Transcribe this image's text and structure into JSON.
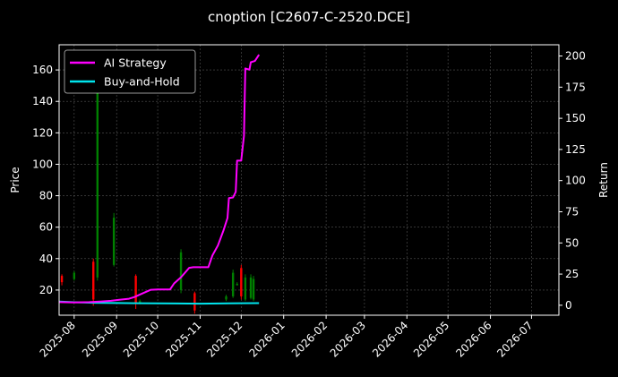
{
  "chart_data": {
    "type": "line",
    "title": "cnoption [C2607-C-2520.DCE]",
    "ylabel_left": "Price",
    "ylabel_right": "Return",
    "xlabel": "",
    "grid": true,
    "legend_placement": "top-left",
    "x_ticks": [
      "2025-08",
      "2025-09",
      "2025-10",
      "2025-11",
      "2025-12",
      "2026-01",
      "2026-02",
      "2026-03",
      "2026-04",
      "2026-05",
      "2026-06",
      "2026-07"
    ],
    "x_range": [
      "2025-07-21",
      "2026-07-21"
    ],
    "y_left_ticks": [
      20,
      40,
      60,
      80,
      100,
      120,
      140,
      160
    ],
    "y_left_range": [
      4,
      176
    ],
    "y_right_ticks": [
      0,
      25,
      50,
      75,
      100,
      125,
      150,
      175,
      200
    ],
    "y_right_range": [
      -8,
      209
    ],
    "colors": {
      "up": "#008000",
      "down": "#ff0000",
      "strategy": "#ff00ff",
      "buyhold": "#00e5ee",
      "background": "#000000",
      "grid": "#555555"
    },
    "series": [
      {
        "name": "AI Strategy",
        "axis": "right",
        "points": [
          [
            "2025-07-21",
            2.5
          ],
          [
            "2025-08-01",
            2.2
          ],
          [
            "2025-08-12",
            2.5
          ],
          [
            "2025-08-15",
            2.7
          ],
          [
            "2025-08-20",
            3.0
          ],
          [
            "2025-08-28",
            3.6
          ],
          [
            "2025-09-03",
            4.4
          ],
          [
            "2025-09-10",
            5.2
          ],
          [
            "2025-09-14",
            6.6
          ],
          [
            "2025-09-20",
            9.5
          ],
          [
            "2025-09-26",
            12.4
          ],
          [
            "2025-10-01",
            12.6
          ],
          [
            "2025-10-10",
            12.6
          ],
          [
            "2025-10-13",
            17.5
          ],
          [
            "2025-10-18",
            22.5
          ],
          [
            "2025-10-24",
            30.0
          ],
          [
            "2025-10-27",
            30.5
          ],
          [
            "2025-10-31",
            30.5
          ],
          [
            "2025-11-07",
            30.5
          ],
          [
            "2025-11-10",
            40.0
          ],
          [
            "2025-11-14",
            48.0
          ],
          [
            "2025-11-18",
            60.0
          ],
          [
            "2025-11-21",
            70.0
          ],
          [
            "2025-11-22",
            86.0
          ],
          [
            "2025-11-25",
            86.5
          ],
          [
            "2025-11-27",
            91.0
          ],
          [
            "2025-11-28",
            116.0
          ],
          [
            "2025-12-01",
            116.0
          ],
          [
            "2025-12-03",
            136.0
          ],
          [
            "2025-12-04",
            190.0
          ],
          [
            "2025-12-07",
            189.0
          ],
          [
            "2025-12-08",
            195.0
          ],
          [
            "2025-12-11",
            196.0
          ],
          [
            "2025-12-14",
            201.0
          ]
        ]
      },
      {
        "name": "Buy-and-Hold",
        "axis": "right",
        "points": [
          [
            "2025-07-21",
            3.0
          ],
          [
            "2025-08-01",
            2.4
          ],
          [
            "2025-08-15",
            2.0
          ],
          [
            "2025-09-01",
            1.8
          ],
          [
            "2025-09-15",
            1.6
          ],
          [
            "2025-10-01",
            1.5
          ],
          [
            "2025-10-15",
            1.4
          ],
          [
            "2025-11-01",
            1.3
          ],
          [
            "2025-11-15",
            1.4
          ],
          [
            "2025-12-01",
            1.6
          ],
          [
            "2025-12-14",
            1.7
          ]
        ]
      }
    ],
    "candles": [
      {
        "x": "2025-07-23",
        "high": 30,
        "low": 23,
        "open": 29,
        "close": 25
      },
      {
        "x": "2025-08-01",
        "high": 32,
        "low": 26,
        "open": 27,
        "close": 31
      },
      {
        "x": "2025-08-15",
        "high": 40,
        "low": 10,
        "open": 38,
        "close": 14
      },
      {
        "x": "2025-08-18",
        "high": 155,
        "low": 26,
        "open": 28,
        "close": 150
      },
      {
        "x": "2025-08-30",
        "high": 69,
        "low": 35,
        "open": 36,
        "close": 66
      },
      {
        "x": "2025-09-15",
        "high": 30,
        "low": 8,
        "open": 29,
        "close": 12
      },
      {
        "x": "2025-09-18",
        "high": 14,
        "low": 11,
        "open": 12,
        "close": 13
      },
      {
        "x": "2025-10-18",
        "high": 46,
        "low": 18,
        "open": 20,
        "close": 44
      },
      {
        "x": "2025-10-28",
        "high": 19,
        "low": 5,
        "open": 18,
        "close": 7
      },
      {
        "x": "2025-11-20",
        "high": 17,
        "low": 13,
        "open": 14,
        "close": 16
      },
      {
        "x": "2025-11-25",
        "high": 33,
        "low": 15,
        "open": 16,
        "close": 31
      },
      {
        "x": "2025-11-28",
        "high": 25,
        "low": 23,
        "open": 23,
        "close": 24
      },
      {
        "x": "2025-12-01",
        "high": 36,
        "low": 14,
        "open": 34,
        "close": 16
      },
      {
        "x": "2025-12-04",
        "high": 30,
        "low": 13,
        "open": 14,
        "close": 28
      },
      {
        "x": "2025-12-08",
        "high": 30,
        "low": 14,
        "open": 15,
        "close": 28
      },
      {
        "x": "2025-12-10",
        "high": 29,
        "low": 13,
        "open": 14,
        "close": 27
      }
    ]
  }
}
